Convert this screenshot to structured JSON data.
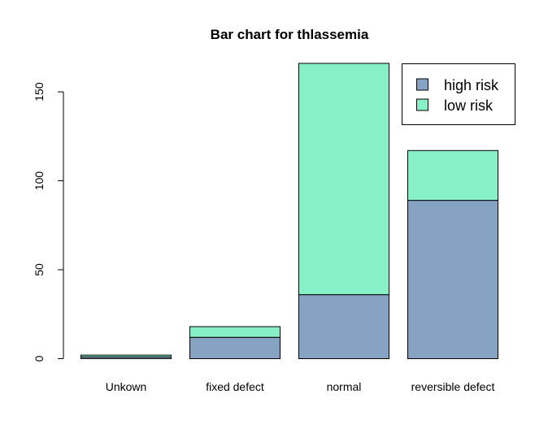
{
  "chart_data": {
    "type": "bar",
    "stacked": true,
    "title": "Bar chart for thlassemia",
    "xlabel": "",
    "ylabel": "",
    "categories": [
      "Unkown",
      "fixed defect",
      "normal",
      "reversible defect"
    ],
    "series": [
      {
        "name": "high risk",
        "color": "#87A3C3",
        "values": [
          1,
          12,
          36,
          89
        ]
      },
      {
        "name": "low risk",
        "color": "#87F0C6",
        "values": [
          1,
          6,
          130,
          28
        ]
      }
    ],
    "ylim": [
      0,
      166
    ],
    "yticks": [
      0,
      50,
      100,
      150
    ],
    "grid": false,
    "legend_position": "top-right"
  }
}
